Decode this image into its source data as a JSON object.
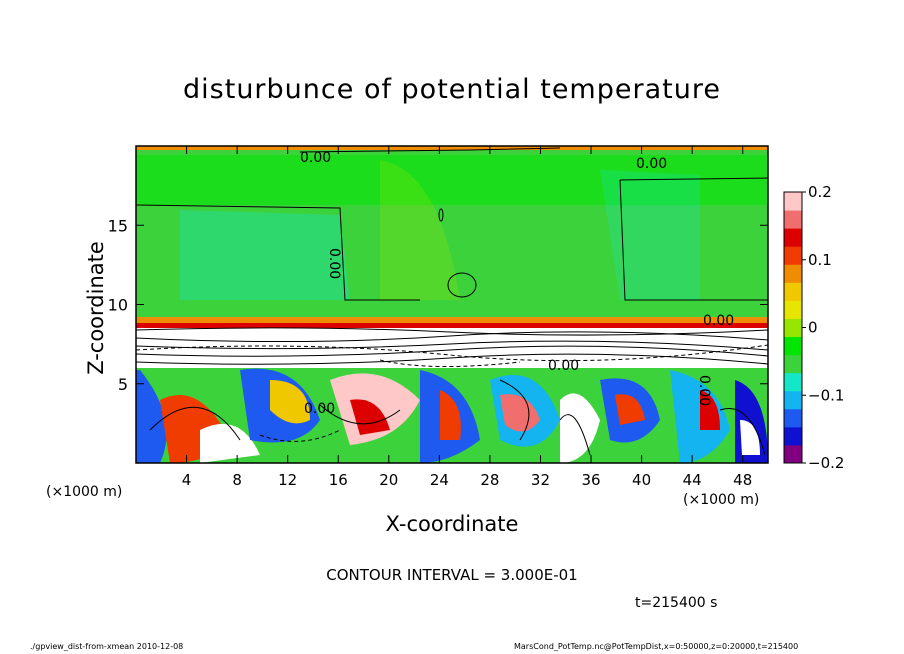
{
  "chart_data": {
    "type": "heatmap",
    "title": "disturbunce of potential temperature",
    "xlabel": "X-coordinate",
    "ylabel": "Z-coordinate",
    "x_unit": "(×1000 m)",
    "xlim": [
      0,
      50
    ],
    "ylim": [
      0,
      20
    ],
    "x_ticks": [
      "4",
      "8",
      "12",
      "16",
      "20",
      "24",
      "28",
      "32",
      "36",
      "40",
      "44",
      "48"
    ],
    "y_ticks": [
      "5",
      "10",
      "15"
    ],
    "colorbar": {
      "range": [
        -0.2,
        0.2
      ],
      "tick_labels": [
        "0.2",
        "0.1",
        "0",
        "−0.1",
        "−0.2"
      ],
      "colors": [
        "#800080",
        "#1010d0",
        "#1e5af0",
        "#14b4f0",
        "#14e6c8",
        "#3cd23c",
        "#00e600",
        "#96e600",
        "#e6e600",
        "#f0c800",
        "#f08c00",
        "#f03c00",
        "#dc0000",
        "#f06e6e",
        "#ffc8c8"
      ]
    },
    "contour_labels": [
      "0.00",
      "0.00",
      "0.00",
      "0.00",
      "0.00",
      "0.00",
      "0.00"
    ],
    "contour_interval": "CONTOUR INTERVAL = 3.000E-01",
    "time": "t=215400 s"
  },
  "footer": {
    "left": "./gpview_dist-from-xmean  2010-12-08",
    "right": "MarsCond_PotTemp.nc@PotTempDist,x=0:50000,z=0:20000,t=215400"
  }
}
